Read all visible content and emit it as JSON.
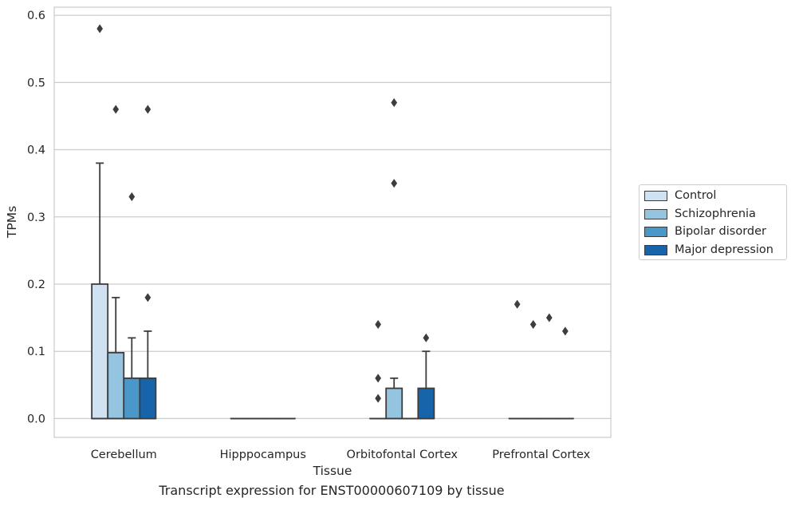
{
  "chart_data": {
    "type": "box",
    "xlabel": "Tissue",
    "ylabel": "TPMs",
    "caption": "Transcript expression for ENST00000607109 by tissue",
    "ylim": [
      -0.028,
      0.612
    ],
    "yticks": [
      "0.0",
      "0.1",
      "0.2",
      "0.3",
      "0.4",
      "0.5",
      "0.6"
    ],
    "categories": [
      "Cerebellum",
      "Hipppocampus",
      "Orbitofontal Cortex",
      "Prefrontal Cortex"
    ],
    "grid": true,
    "legend_position": "right",
    "series": [
      {
        "name": "Control",
        "color": "#d0e1f2",
        "boxes": [
          {
            "q1": 0,
            "median": 0,
            "q3": 0.2,
            "whisker_low": 0,
            "whisker_high": 0.38,
            "outliers": [
              0.58
            ]
          },
          {
            "q1": 0,
            "median": 0,
            "q3": 0,
            "whisker_low": 0,
            "whisker_high": 0,
            "outliers": []
          },
          {
            "q1": 0,
            "median": 0,
            "q3": 0,
            "whisker_low": 0,
            "whisker_high": 0,
            "outliers": [
              0.14,
              0.06,
              0.03
            ]
          },
          {
            "q1": 0,
            "median": 0,
            "q3": 0,
            "whisker_low": 0,
            "whisker_high": 0,
            "outliers": [
              0.17
            ]
          }
        ]
      },
      {
        "name": "Schizophrenia",
        "color": "#94c4df",
        "boxes": [
          {
            "q1": 0,
            "median": 0,
            "q3": 0.098,
            "whisker_low": 0,
            "whisker_high": 0.18,
            "outliers": [
              0.46
            ]
          },
          {
            "q1": 0,
            "median": 0,
            "q3": 0,
            "whisker_low": 0,
            "whisker_high": 0,
            "outliers": []
          },
          {
            "q1": 0,
            "median": 0,
            "q3": 0.045,
            "whisker_low": 0,
            "whisker_high": 0.06,
            "outliers": [
              0.47,
              0.35
            ]
          },
          {
            "q1": 0,
            "median": 0,
            "q3": 0,
            "whisker_low": 0,
            "whisker_high": 0,
            "outliers": [
              0.14
            ]
          }
        ]
      },
      {
        "name": "Bipolar disorder",
        "color": "#4a98c9",
        "boxes": [
          {
            "q1": 0,
            "median": 0,
            "q3": 0.06,
            "whisker_low": 0,
            "whisker_high": 0.12,
            "outliers": [
              0.33
            ]
          },
          {
            "q1": 0,
            "median": 0,
            "q3": 0,
            "whisker_low": 0,
            "whisker_high": 0,
            "outliers": []
          },
          {
            "q1": 0,
            "median": 0,
            "q3": 0,
            "whisker_low": 0,
            "whisker_high": 0,
            "outliers": []
          },
          {
            "q1": 0,
            "median": 0,
            "q3": 0,
            "whisker_low": 0,
            "whisker_high": 0,
            "outliers": [
              0.15
            ]
          }
        ]
      },
      {
        "name": "Major depression",
        "color": "#1764ab",
        "boxes": [
          {
            "q1": 0,
            "median": 0,
            "q3": 0.06,
            "whisker_low": 0,
            "whisker_high": 0.13,
            "outliers": [
              0.46,
              0.18
            ]
          },
          {
            "q1": 0,
            "median": 0,
            "q3": 0,
            "whisker_low": 0,
            "whisker_high": 0,
            "outliers": []
          },
          {
            "q1": 0,
            "median": 0,
            "q3": 0.045,
            "whisker_low": 0,
            "whisker_high": 0.1,
            "outliers": [
              0.12
            ]
          },
          {
            "q1": 0,
            "median": 0,
            "q3": 0,
            "whisker_low": 0,
            "whisker_high": 0,
            "outliers": [
              0.13
            ]
          }
        ]
      }
    ]
  }
}
